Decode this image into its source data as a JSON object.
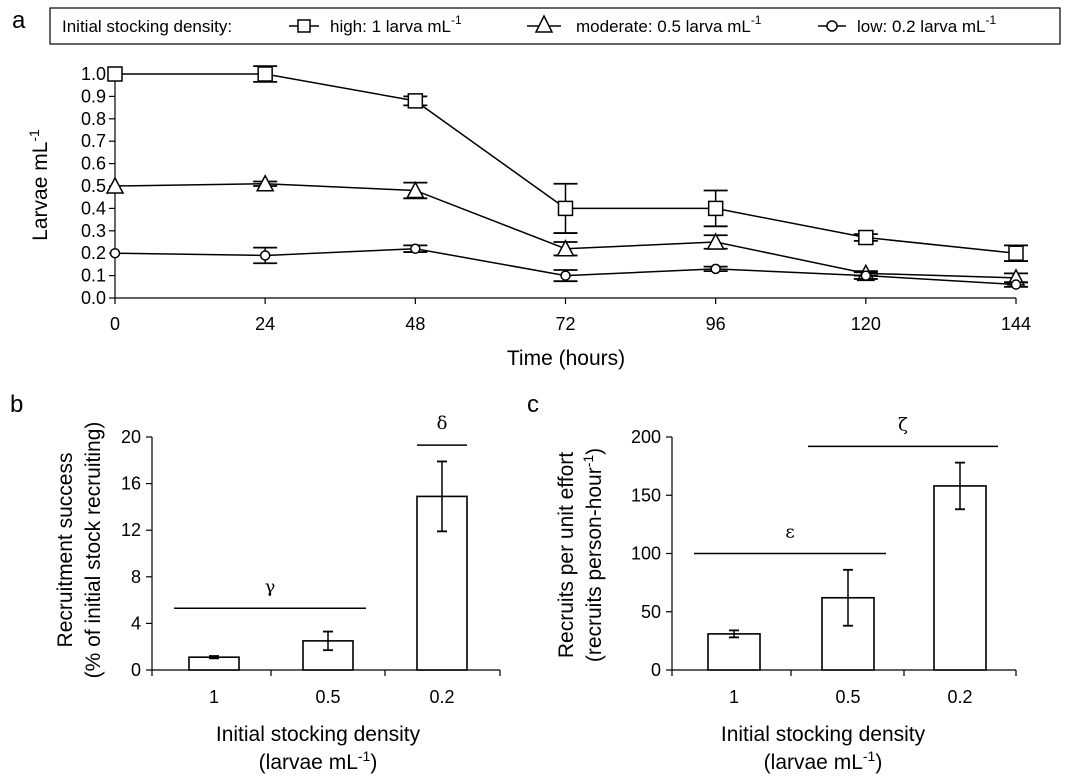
{
  "panels": {
    "a": "a",
    "b": "b",
    "c": "c"
  },
  "legend": {
    "title": "Initial stocking density:",
    "items": [
      {
        "main": "high: 1 larva mL",
        "sup": "-1",
        "marker": "square"
      },
      {
        "main": "moderate: 0.5 larva mL",
        "sup": "-1",
        "marker": "triangle"
      },
      {
        "main": "low: 0.2 larva mL",
        "sup": "-1",
        "marker": "circle"
      }
    ]
  },
  "chart_data": [
    {
      "id": "a",
      "type": "line",
      "xlabel": "Time (hours)",
      "ylabel_main": "Larvae mL",
      "ylabel_sup": "-1",
      "x": [
        0,
        24,
        48,
        72,
        96,
        120,
        144
      ],
      "xlim": [
        0,
        144
      ],
      "xticks": [
        "0",
        "24",
        "48",
        "72",
        "96",
        "120",
        "144"
      ],
      "ylim": [
        0,
        1.0
      ],
      "yticks": [
        "0.0",
        "0.1",
        "0.2",
        "0.3",
        "0.4",
        "0.5",
        "0.6",
        "0.7",
        "0.8",
        "0.9",
        "1.0"
      ],
      "series": [
        {
          "name": "high: 1 larva mL-1",
          "marker": "square",
          "values": [
            1.0,
            1.0,
            0.88,
            0.4,
            0.4,
            0.27,
            0.2
          ],
          "errors": [
            0,
            0.035,
            0.02,
            0.11,
            0.08,
            0.015,
            0.035
          ]
        },
        {
          "name": "moderate: 0.5 larva mL-1",
          "marker": "triangle",
          "values": [
            0.5,
            0.51,
            0.48,
            0.22,
            0.25,
            0.11,
            0.09
          ],
          "errors": [
            0,
            0.01,
            0.035,
            0.03,
            0.03,
            0.01,
            0.02
          ]
        },
        {
          "name": "low: 0.2 larva mL-1",
          "marker": "circle",
          "values": [
            0.2,
            0.19,
            0.22,
            0.1,
            0.13,
            0.1,
            0.06
          ],
          "errors": [
            0,
            0.035,
            0.015,
            0.025,
            0.01,
            0.015,
            0.01
          ]
        }
      ]
    },
    {
      "id": "b",
      "type": "bar",
      "categories": [
        "1",
        "0.5",
        "0.2"
      ],
      "values": [
        1.1,
        2.5,
        14.9
      ],
      "errors": [
        0.1,
        0.8,
        3.0
      ],
      "ylim": [
        0,
        20
      ],
      "yticks": [
        "0",
        "4",
        "8",
        "12",
        "16",
        "20"
      ],
      "ylabel_line1": "Recruitment success",
      "ylabel_line2": "(% of initial stock recruiting)",
      "xlabel_line1": "Initial stocking density",
      "xlabel_line2_main": "(larvae mL",
      "xlabel_line2_sup": "-1",
      "xlabel_line2_end": ")",
      "annotations": [
        {
          "label": "γ",
          "from": 0,
          "to": 1,
          "y": 5.3
        },
        {
          "label": "δ",
          "from": 2,
          "to": 2,
          "y": 19.3
        }
      ]
    },
    {
      "id": "c",
      "type": "bar",
      "categories": [
        "1",
        "0.5",
        "0.2"
      ],
      "values": [
        31,
        62,
        158
      ],
      "errors": [
        3,
        24,
        20
      ],
      "ylim": [
        0,
        200
      ],
      "yticks": [
        "0",
        "50",
        "100",
        "150",
        "200"
      ],
      "ylabel_line1": "Recruits per unit effort",
      "ylabel_line2_main": "(recruits person-hour",
      "ylabel_line2_sup": "-1",
      "ylabel_line2_end": ")",
      "xlabel_line1": "Initial stocking density",
      "xlabel_line2_main": "(larvae mL",
      "xlabel_line2_sup": "-1",
      "xlabel_line2_end": ")",
      "annotations": [
        {
          "label": "ε",
          "from": 0,
          "to": 1,
          "y": 100
        },
        {
          "label": "ζ",
          "from": 1,
          "to": 2,
          "y": 192
        }
      ]
    }
  ]
}
